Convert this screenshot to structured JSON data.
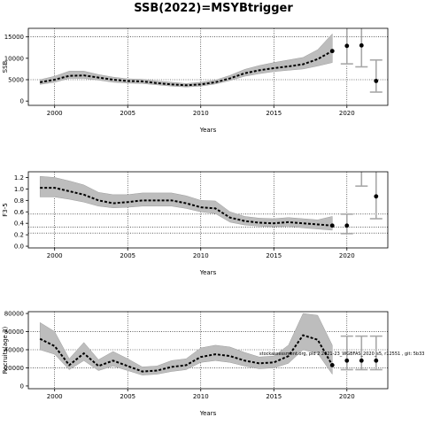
{
  "title": "SSB(2022)=MSYBtrigger",
  "chart_data": [
    {
      "type": "line",
      "ylabel": "SSB",
      "xlabel": "Years",
      "xlim": [
        1998.2,
        2022.8
      ],
      "ylim": [
        -1000,
        17000
      ],
      "xticks": [
        2000,
        2005,
        2010,
        2015,
        2020
      ],
      "yticks": [
        0,
        5000,
        10000,
        15000
      ],
      "ytick_labels": [
        "0",
        "5000",
        "10000",
        "15000"
      ],
      "hlines": [
        5000,
        15000
      ],
      "grid": true,
      "series": [
        {
          "x": [
            1999,
            2000,
            2001,
            2002,
            2003,
            2004,
            2005,
            2006,
            2007,
            2008,
            2009,
            2010,
            2011,
            2012,
            2013,
            2014,
            2015,
            2016,
            2017,
            2018,
            2019
          ],
          "values": [
            4400,
            5000,
            5900,
            6000,
            5500,
            5000,
            4700,
            4600,
            4200,
            3900,
            3700,
            3900,
            4400,
            5300,
            6500,
            7200,
            7700,
            8100,
            8600,
            9800,
            11700
          ],
          "lower": [
            3900,
            4400,
            5300,
            5300,
            4900,
            4400,
            4200,
            4100,
            3800,
            3500,
            3300,
            3500,
            4000,
            4800,
            5800,
            6400,
            6900,
            7200,
            7500,
            8200,
            9000
          ],
          "upper": [
            5000,
            5800,
            7000,
            7000,
            6200,
            5600,
            5200,
            5100,
            4700,
            4400,
            4100,
            4400,
            4900,
            6000,
            7400,
            8300,
            9000,
            9600,
            10200,
            12000,
            15700
          ]
        }
      ],
      "projection": {
        "x": [
          2020,
          2021,
          2022
        ],
        "values": [
          12900,
          13000,
          4700
        ],
        "lower": [
          8700,
          8000,
          2100
        ],
        "upper": [
          17500,
          17500,
          9600
        ]
      }
    },
    {
      "type": "line",
      "ylabel": "F3-5",
      "xlabel": "Years",
      "xlim": [
        1998.2,
        2022.8
      ],
      "ylim": [
        -0.03,
        1.3
      ],
      "xticks": [
        2000,
        2005,
        2010,
        2015,
        2020
      ],
      "yticks": [
        0.0,
        0.2,
        0.4,
        0.6,
        0.8,
        1.0,
        1.2
      ],
      "ytick_labels": [
        "0.0",
        "0.2",
        "0.4",
        "0.6",
        "0.8",
        "1.0",
        "1.2"
      ],
      "hlines": [
        0.23,
        0.33,
        0.56
      ],
      "grid": true,
      "series": [
        {
          "x": [
            1999,
            2000,
            2001,
            2002,
            2003,
            2004,
            2005,
            2006,
            2007,
            2008,
            2009,
            2010,
            2011,
            2012,
            2013,
            2014,
            2015,
            2016,
            2017,
            2018,
            2019
          ],
          "values": [
            1.02,
            1.02,
            0.96,
            0.9,
            0.8,
            0.75,
            0.77,
            0.8,
            0.8,
            0.8,
            0.75,
            0.68,
            0.66,
            0.5,
            0.44,
            0.41,
            0.4,
            0.42,
            0.4,
            0.38,
            0.36
          ],
          "lower": [
            0.86,
            0.86,
            0.82,
            0.77,
            0.7,
            0.67,
            0.68,
            0.7,
            0.7,
            0.7,
            0.66,
            0.6,
            0.57,
            0.42,
            0.37,
            0.35,
            0.34,
            0.35,
            0.32,
            0.3,
            0.28
          ],
          "upper": [
            1.22,
            1.2,
            1.14,
            1.07,
            0.94,
            0.9,
            0.9,
            0.93,
            0.93,
            0.93,
            0.88,
            0.8,
            0.79,
            0.6,
            0.52,
            0.49,
            0.48,
            0.5,
            0.48,
            0.46,
            0.52
          ]
        }
      ],
      "projection": {
        "x": [
          2020,
          2022
        ],
        "values": [
          0.36,
          0.87
        ],
        "lower": [
          0.22,
          0.48
        ],
        "upper": [
          0.56,
          1.5
        ]
      },
      "extra_errorbars": [
        {
          "x": 2021,
          "lower": 1.05,
          "upper": 1.5
        }
      ]
    },
    {
      "type": "line",
      "ylabel": "Recruits(age 2)",
      "xlabel": "Years",
      "xlim": [
        1998.2,
        2022.8
      ],
      "ylim": [
        -3000,
        82000
      ],
      "xticks": [
        2000,
        2005,
        2010,
        2015,
        2020
      ],
      "yticks": [
        0,
        20000,
        40000,
        60000,
        80000
      ],
      "ytick_labels": [
        "0",
        "20000",
        "40000",
        "60000",
        "80000"
      ],
      "hlines": [
        20000,
        40000,
        60000
      ],
      "grid": true,
      "series": [
        {
          "x": [
            1999,
            2000,
            2001,
            2002,
            2003,
            2004,
            2005,
            2006,
            2007,
            2008,
            2009,
            2010,
            2011,
            2012,
            2013,
            2014,
            2015,
            2016,
            2017,
            2018,
            2019
          ],
          "values": [
            52000,
            44000,
            23000,
            36000,
            22000,
            28000,
            22000,
            16000,
            17000,
            21000,
            23000,
            32000,
            35000,
            33000,
            28000,
            25000,
            26000,
            33000,
            56000,
            51000,
            23000
          ],
          "lower": [
            40000,
            35000,
            18000,
            28000,
            17000,
            22000,
            17000,
            12000,
            13000,
            16000,
            18000,
            26000,
            28000,
            26000,
            22000,
            19000,
            20000,
            25000,
            40000,
            36000,
            13000
          ],
          "upper": [
            70000,
            60000,
            30000,
            48000,
            29000,
            38000,
            30000,
            21000,
            22000,
            28000,
            30000,
            42000,
            45000,
            43000,
            37000,
            32000,
            33000,
            45000,
            80000,
            78000,
            45000
          ]
        }
      ],
      "projection": {
        "x": [
          2020,
          2021,
          2022
        ],
        "values": [
          28000,
          28000,
          28000
        ],
        "lower": [
          18000,
          18000,
          18000
        ],
        "upper": [
          55000,
          55000,
          55000
        ]
      },
      "annotation": "stockassessment.org, pid 2 2021-23_WGBFAS_2020_s5, r12551 , git: 5b33"
    }
  ]
}
